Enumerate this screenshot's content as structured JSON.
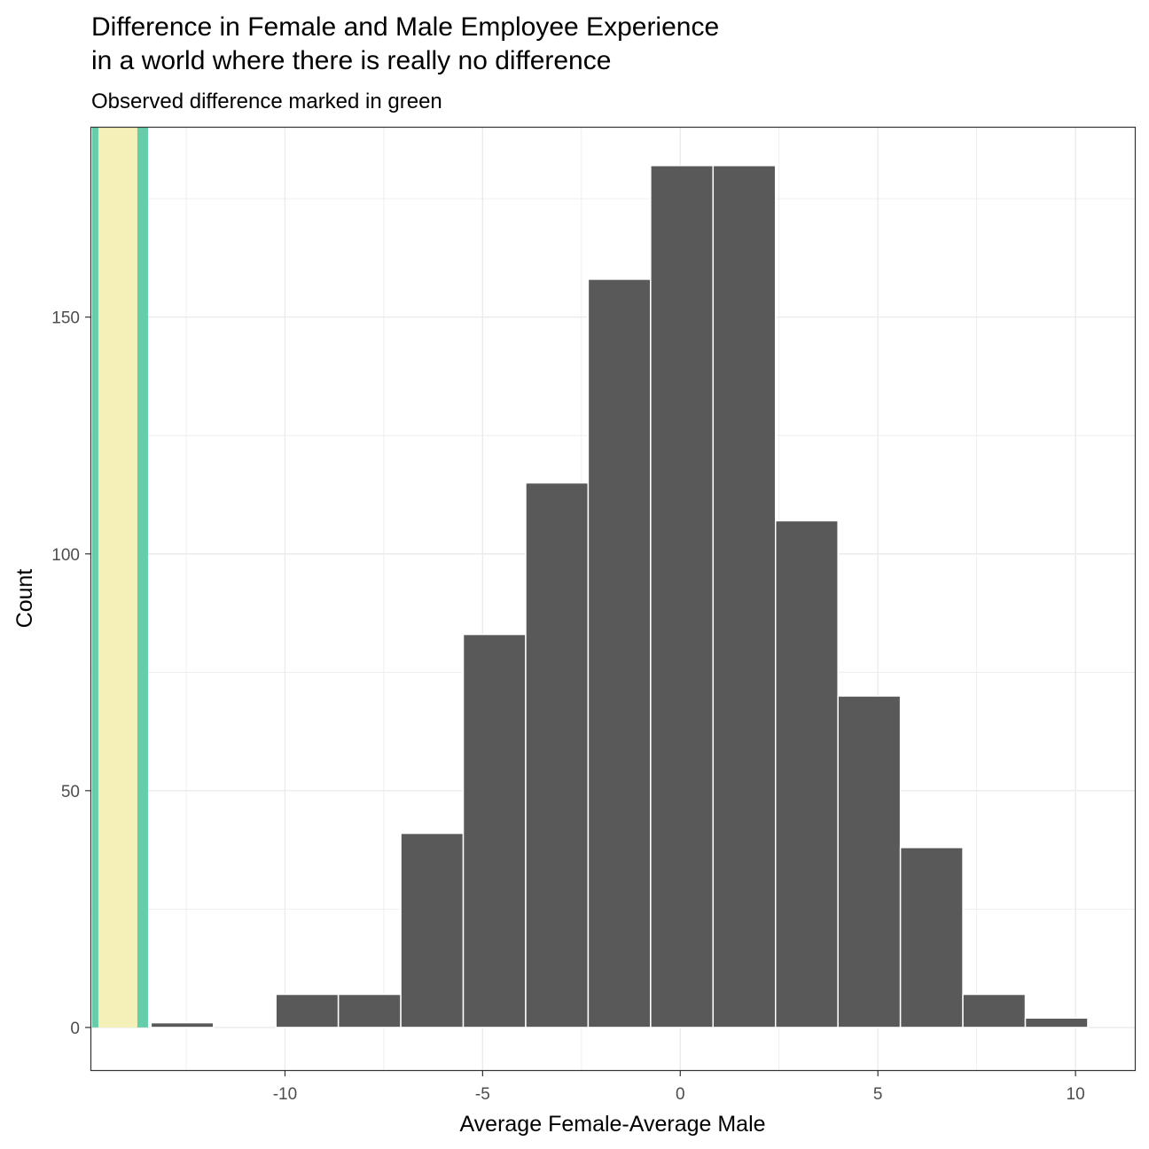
{
  "chart_data": {
    "type": "bar",
    "title_lines": [
      "Difference in Female and Male Employee Experience",
      "in a world where there is  really no difference"
    ],
    "subtitle": "Observed difference marked in green",
    "xlabel": "Average Female-Average Male",
    "ylabel": "Count",
    "xlim": [
      -14.9,
      11.5
    ],
    "ylim": [
      -9,
      190
    ],
    "x_ticks": [
      -10,
      -5,
      0,
      5,
      10
    ],
    "x_tick_labels": [
      "-10",
      "-5",
      "0",
      "5",
      "10"
    ],
    "y_ticks": [
      0,
      50,
      100,
      150
    ],
    "y_tick_labels": [
      "0",
      "50",
      "100",
      "150"
    ],
    "grid": true,
    "bin_width": 1.58,
    "bins": [
      {
        "x": -12.6,
        "count": 1
      },
      {
        "x": -11.02,
        "count": 0
      },
      {
        "x": -9.44,
        "count": 7
      },
      {
        "x": -7.86,
        "count": 7
      },
      {
        "x": -6.28,
        "count": 41
      },
      {
        "x": -4.7,
        "count": 83
      },
      {
        "x": -3.12,
        "count": 115
      },
      {
        "x": -1.54,
        "count": 158
      },
      {
        "x": 0.04,
        "count": 182
      },
      {
        "x": 1.62,
        "count": 182
      },
      {
        "x": 3.2,
        "count": 107
      },
      {
        "x": 4.78,
        "count": 70
      },
      {
        "x": 6.36,
        "count": 38
      },
      {
        "x": 7.94,
        "count": 7
      },
      {
        "x": 9.52,
        "count": 2
      }
    ],
    "observed_difference": -13.6,
    "shaded_region": [
      -14.8,
      -13.6
    ],
    "colors": {
      "bar": "#595959",
      "bar_outline": "#ffffff",
      "observed_line": "#66cdaa",
      "shaded_region": "#f5f0b8",
      "grid": "#ebebeb",
      "panel_border": "#333333"
    }
  }
}
